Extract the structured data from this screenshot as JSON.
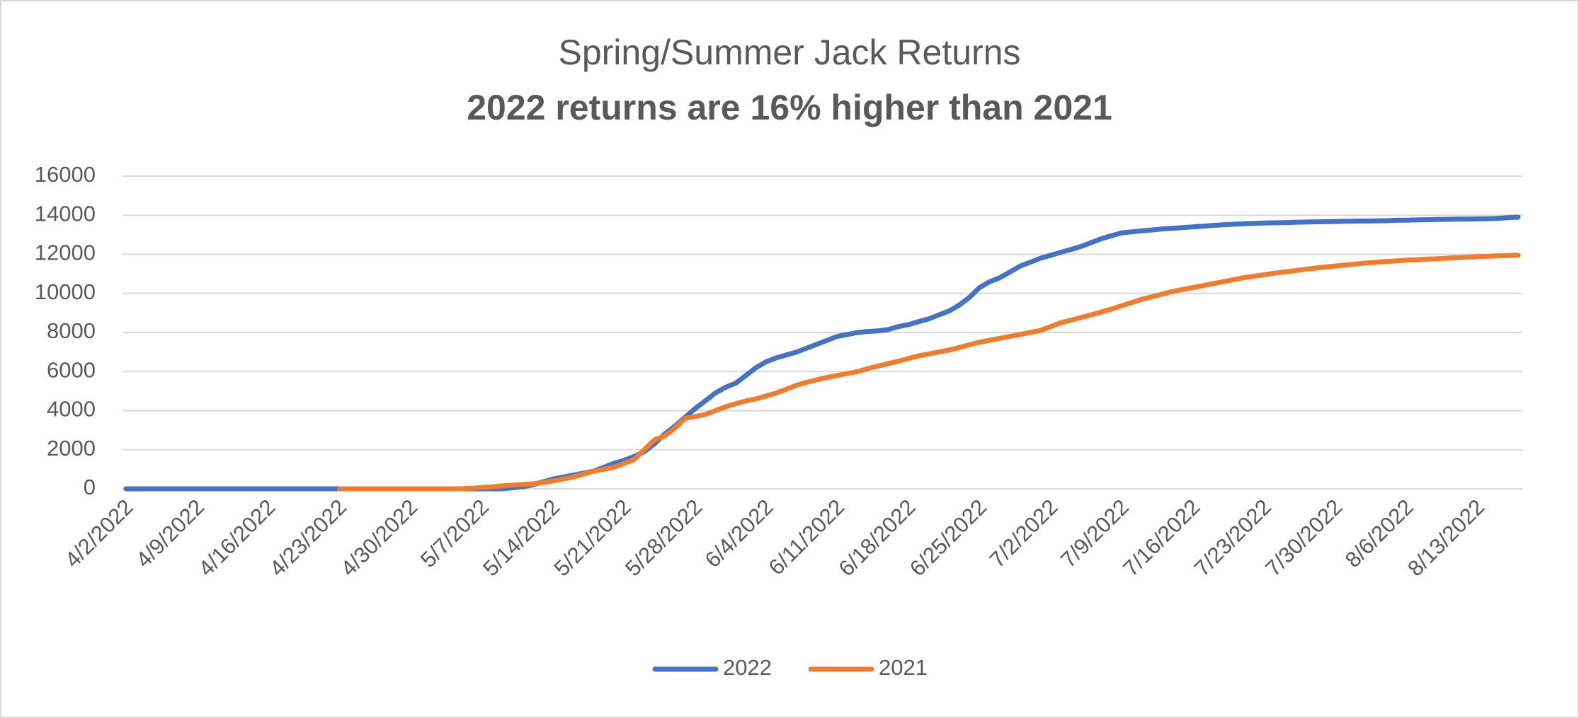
{
  "chart_data": {
    "type": "line",
    "title": "Spring/Summer Jack Returns",
    "subtitle": "2022 returns are 16% higher than 2021",
    "categories": [
      "4/2/2022",
      null,
      null,
      null,
      null,
      null,
      null,
      "4/9/2022",
      null,
      null,
      null,
      null,
      null,
      null,
      "4/16/2022",
      null,
      null,
      null,
      null,
      null,
      null,
      "4/23/2022",
      null,
      null,
      null,
      null,
      null,
      null,
      "4/30/2022",
      null,
      null,
      null,
      null,
      null,
      null,
      "5/7/2022",
      null,
      null,
      null,
      null,
      null,
      null,
      "5/14/2022",
      null,
      null,
      null,
      null,
      null,
      null,
      "5/21/2022",
      null,
      null,
      null,
      null,
      null,
      null,
      "5/28/2022",
      null,
      null,
      null,
      null,
      null,
      null,
      "6/4/2022",
      null,
      null,
      null,
      null,
      null,
      null,
      "6/11/2022",
      null,
      null,
      null,
      null,
      null,
      null,
      "6/18/2022",
      null,
      null,
      null,
      null,
      null,
      null,
      "6/25/2022",
      null,
      null,
      null,
      null,
      null,
      null,
      "7/2/2022",
      null,
      null,
      null,
      null,
      null,
      null,
      "7/9/2022",
      null,
      null,
      null,
      null,
      null,
      null,
      "7/16/2022",
      null,
      null,
      null,
      null,
      null,
      null,
      "7/23/2022",
      null,
      null,
      null,
      null,
      null,
      null,
      "7/30/2022",
      null,
      null,
      null,
      null,
      null,
      null,
      "8/6/2022",
      null,
      null,
      null,
      null,
      null,
      null,
      "8/13/2022",
      null,
      null,
      null,
      null
    ],
    "series": [
      {
        "name": "2022",
        "color": "#4472c4",
        "values": [
          0,
          0,
          0,
          0,
          0,
          0,
          0,
          0,
          0,
          0,
          0,
          0,
          0,
          0,
          0,
          0,
          0,
          0,
          0,
          0,
          0,
          0,
          0,
          0,
          0,
          0,
          0,
          0,
          0,
          0,
          0,
          0,
          0,
          0,
          0,
          0,
          0,
          0,
          50,
          100,
          200,
          350,
          500,
          600,
          700,
          800,
          900,
          1100,
          1300,
          1450,
          1650,
          1900,
          2300,
          2800,
          3200,
          3650,
          4100,
          4500,
          4900,
          5200,
          5400,
          5800,
          6200,
          6500,
          6700,
          6850,
          7000,
          7200,
          7400,
          7600,
          7800,
          7900,
          8000,
          8050,
          8080,
          8150,
          8300,
          8400,
          8550,
          8700,
          8900,
          9100,
          9400,
          9800,
          10300,
          10600,
          10800,
          11100,
          11400,
          11600,
          11800,
          11950,
          12100,
          12250,
          12400,
          12600,
          12800,
          12950,
          13100,
          13150,
          13200,
          13250,
          13300,
          13330,
          13370,
          13400,
          13440,
          13480,
          13510,
          13540,
          13560,
          13580,
          13600,
          13610,
          13620,
          13640,
          13650,
          13660,
          13670,
          13680,
          13690,
          13700,
          13700,
          13710,
          13720,
          13740,
          13750,
          13760,
          13770,
          13780,
          13790,
          13800,
          13800,
          13810,
          13820,
          13840,
          13870,
          13900
        ]
      },
      {
        "name": "2021",
        "color": "#ed7d31",
        "values": [
          null,
          null,
          null,
          null,
          null,
          null,
          null,
          null,
          null,
          null,
          null,
          null,
          null,
          null,
          null,
          null,
          null,
          null,
          null,
          null,
          null,
          0,
          0,
          0,
          0,
          0,
          0,
          0,
          0,
          0,
          0,
          0,
          0,
          0,
          30,
          60,
          100,
          150,
          180,
          220,
          250,
          320,
          400,
          500,
          600,
          750,
          900,
          1000,
          1100,
          1300,
          1500,
          2000,
          2500,
          2700,
          3100,
          3600,
          3700,
          3800,
          4000,
          4200,
          4350,
          4500,
          4600,
          4750,
          4900,
          5100,
          5300,
          5450,
          5580,
          5700,
          5800,
          5900,
          6000,
          6150,
          6280,
          6400,
          6530,
          6670,
          6800,
          6900,
          7000,
          7100,
          7230,
          7370,
          7500,
          7600,
          7700,
          7800,
          7900,
          8000,
          8100,
          8300,
          8500,
          8630,
          8770,
          8900,
          9050,
          9200,
          9370,
          9530,
          9700,
          9830,
          9970,
          10100,
          10200,
          10300,
          10400,
          10500,
          10600,
          10700,
          10800,
          10880,
          10950,
          11030,
          11100,
          11160,
          11230,
          11290,
          11350,
          11400,
          11450,
          11500,
          11550,
          11590,
          11630,
          11660,
          11700,
          11720,
          11750,
          11770,
          11800,
          11830,
          11850,
          11880,
          11900,
          11920,
          11940,
          11950
        ]
      }
    ],
    "ylim": [
      0,
      16000
    ],
    "yticks": [
      0,
      2000,
      4000,
      6000,
      8000,
      10000,
      12000,
      14000,
      16000
    ],
    "grid": true,
    "legend": "bottom"
  }
}
